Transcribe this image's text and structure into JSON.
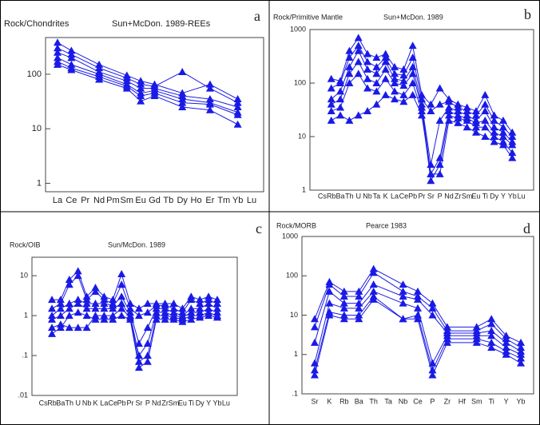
{
  "chart_data": [
    {
      "type": "line",
      "title": "Rock/Chondrites",
      "subtitle": "Sun+McDon. 1989-REEs",
      "label": "a",
      "log_y": true,
      "color": "#1a1ae6",
      "categories": [
        "La",
        "Ce",
        "Pr",
        "Nd",
        "Pm",
        "Sm",
        "Eu",
        "Gd",
        "Tb",
        "Dy",
        "Ho",
        "Er",
        "Tm",
        "Yb",
        "Lu"
      ],
      "ylim": [
        0.7,
        470
      ],
      "yticks": [
        1,
        10,
        100
      ],
      "series": [
        {
          "values": [
            380,
            270,
            null,
            150,
            null,
            95,
            75,
            65,
            null,
            45,
            null,
            65,
            null,
            35,
            null
          ]
        },
        {
          "values": [
            300,
            230,
            null,
            130,
            null,
            85,
            65,
            60,
            null,
            110,
            null,
            55,
            null,
            30,
            null
          ]
        },
        {
          "values": [
            250,
            200,
            null,
            110,
            null,
            75,
            55,
            55,
            null,
            40,
            null,
            35,
            null,
            25,
            null
          ]
        },
        {
          "values": [
            200,
            150,
            null,
            100,
            null,
            65,
            45,
            50,
            null,
            35,
            null,
            30,
            null,
            20,
            null
          ]
        },
        {
          "values": [
            170,
            130,
            null,
            90,
            null,
            60,
            40,
            45,
            null,
            30,
            null,
            28,
            null,
            18,
            null
          ]
        },
        {
          "values": [
            150,
            120,
            null,
            80,
            null,
            55,
            32,
            40,
            null,
            25,
            null,
            22,
            null,
            12,
            null
          ]
        }
      ]
    },
    {
      "type": "line",
      "title": "Rock/Primitive Mantle",
      "subtitle": "Sun+McDon. 1989",
      "label": "b",
      "log_y": true,
      "color": "#1a1ae6",
      "categories": [
        "Cs",
        "Rb",
        "Ba",
        "Th",
        "U",
        "Nb",
        "Ta",
        "K",
        "La",
        "Ce",
        "Pb",
        "Pr",
        "Sr",
        "P",
        "Nd",
        "Zr",
        "Sm",
        "Eu",
        "Ti",
        "Dy",
        "Y",
        "Yb",
        "Lu"
      ],
      "ylim": [
        1,
        1000
      ],
      "yticks": [
        1,
        10,
        100,
        1000
      ],
      "series": [
        {
          "values": [
            null,
            120,
            110,
            400,
            700,
            350,
            300,
            350,
            200,
            180,
            500,
            60,
            40,
            80,
            50,
            40,
            35,
            30,
            60,
            25,
            20,
            12,
            null
          ]
        },
        {
          "values": [
            null,
            80,
            100,
            300,
            500,
            250,
            200,
            300,
            150,
            140,
            300,
            50,
            30,
            40,
            45,
            35,
            30,
            25,
            40,
            20,
            15,
            10,
            null
          ]
        },
        {
          "values": [
            null,
            50,
            70,
            200,
            400,
            180,
            150,
            250,
            120,
            110,
            200,
            40,
            3,
            20,
            35,
            30,
            25,
            20,
            30,
            15,
            12,
            8,
            null
          ]
        },
        {
          "values": [
            null,
            40,
            50,
            150,
            250,
            120,
            100,
            180,
            100,
            90,
            150,
            35,
            2,
            4,
            30,
            25,
            22,
            18,
            20,
            12,
            10,
            7,
            null
          ]
        },
        {
          "values": [
            null,
            30,
            35,
            100,
            150,
            80,
            70,
            120,
            70,
            60,
            100,
            30,
            1.5,
            3,
            25,
            22,
            20,
            15,
            15,
            10,
            8,
            5,
            null
          ]
        },
        {
          "values": [
            null,
            20,
            25,
            20,
            25,
            30,
            40,
            60,
            50,
            45,
            60,
            25,
            2,
            2,
            20,
            18,
            15,
            12,
            10,
            8,
            7,
            4,
            null
          ]
        }
      ]
    },
    {
      "type": "line",
      "title": "Rock/OIB",
      "subtitle": "Sun/McDon. 1989",
      "label": "c",
      "log_y": true,
      "color": "#1a1ae6",
      "categories": [
        "Cs",
        "Rb",
        "Ba",
        "Th",
        "U",
        "Nb",
        "K",
        "La",
        "Ce",
        "Pb",
        "Pr",
        "Sr",
        "P",
        "Nd",
        "Zr",
        "Sm",
        "Eu",
        "Ti",
        "Dy",
        "Y",
        "Yb",
        "Lu"
      ],
      "ylim": [
        0.01,
        29
      ],
      "yticks": [
        {
          "value": 0.01,
          "label": ".01"
        },
        {
          "value": 0.1,
          "label": ".1"
        },
        1,
        10
      ],
      "series": [
        {
          "values": [
            null,
            2.5,
            2.5,
            8,
            13,
            3,
            5,
            3,
            2.5,
            11,
            2,
            1.5,
            2,
            2,
            2,
            2,
            1.5,
            3,
            2.5,
            3,
            2.5,
            null
          ]
        },
        {
          "values": [
            null,
            1.5,
            2,
            6,
            10,
            2.5,
            4,
            2.5,
            2,
            6,
            1.5,
            1,
            1.2,
            1.8,
            1.8,
            1.5,
            1.2,
            2.5,
            2,
            2.5,
            2,
            null
          ]
        },
        {
          "values": [
            null,
            1,
            1.5,
            2,
            2.5,
            2,
            2,
            2,
            1.8,
            3,
            1.2,
            0.2,
            0.5,
            1.5,
            1.5,
            1.2,
            1,
            1.5,
            1.5,
            2,
            1.5,
            null
          ]
        },
        {
          "values": [
            null,
            0.8,
            1,
            1.5,
            2,
            1.5,
            1.5,
            1.5,
            1.5,
            2,
            1,
            0.1,
            0.2,
            1.2,
            1.2,
            1,
            0.9,
            1.2,
            1.2,
            1.5,
            1.2,
            null
          ]
        },
        {
          "values": [
            null,
            0.5,
            0.6,
            0.5,
            0.5,
            0.5,
            1,
            1,
            1,
            1.5,
            0.9,
            0.07,
            0.1,
            1,
            1,
            0.9,
            0.8,
            1,
            1,
            1.2,
            1,
            null
          ]
        },
        {
          "values": [
            null,
            0.35,
            0.5,
            1,
            1.2,
            1,
            0.8,
            0.8,
            0.8,
            1,
            0.8,
            0.05,
            0.07,
            0.8,
            0.8,
            0.8,
            0.7,
            0.8,
            0.9,
            1,
            0.9,
            null
          ]
        }
      ]
    },
    {
      "type": "line",
      "title": "Rock/MORB",
      "subtitle": "Pearce 1983",
      "label": "d",
      "log_y": true,
      "color": "#1a1ae6",
      "categories": [
        "Sr",
        "K",
        "Rb",
        "Ba",
        "Th",
        "Ta",
        "Nb",
        "Ce",
        "P",
        "Zr",
        "Hf",
        "Sm",
        "Ti",
        "Y",
        "Yb"
      ],
      "ylim": [
        0.1,
        1000
      ],
      "yticks": [
        {
          "value": 0.1,
          "label": ".1"
        },
        1,
        10,
        100,
        1000
      ],
      "series": [
        {
          "values": [
            8,
            70,
            40,
            40,
            150,
            null,
            60,
            40,
            20,
            5,
            null,
            5,
            8,
            3,
            2
          ]
        },
        {
          "values": [
            5,
            60,
            30,
            30,
            120,
            null,
            40,
            30,
            15,
            4,
            null,
            4,
            6,
            2.5,
            1.5
          ]
        },
        {
          "values": [
            2,
            40,
            20,
            20,
            60,
            null,
            30,
            25,
            10,
            3.5,
            null,
            3.5,
            4,
            2,
            1.2
          ]
        },
        {
          "values": [
            0.6,
            20,
            15,
            15,
            40,
            null,
            20,
            15,
            0.6,
            3,
            null,
            3,
            3,
            1.5,
            1
          ]
        },
        {
          "values": [
            0.4,
            12,
            10,
            10,
            30,
            null,
            8,
            10,
            0.4,
            2.5,
            null,
            2.5,
            2,
            1.2,
            0.8
          ]
        },
        {
          "values": [
            0.3,
            10,
            8,
            8,
            25,
            null,
            8,
            8,
            0.3,
            2,
            null,
            2,
            1.5,
            1,
            0.6
          ]
        }
      ]
    }
  ]
}
